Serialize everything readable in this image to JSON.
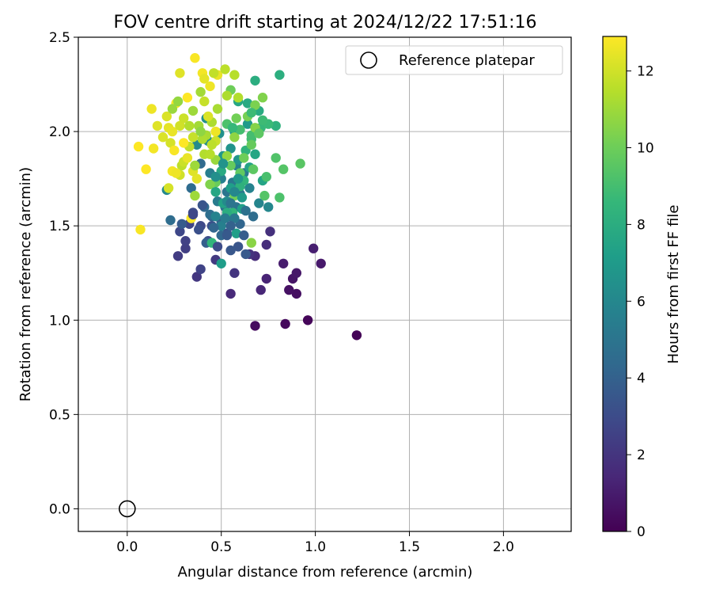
{
  "chart_data": {
    "type": "scatter",
    "title": "FOV centre drift starting at 2024/12/22 17:51:16",
    "xlabel": "Angular distance from reference (arcmin)",
    "ylabel": "Rotation from reference (arcmin)",
    "xlim": [
      -0.26,
      2.36
    ],
    "ylim": [
      -0.12,
      2.5
    ],
    "xticks": [
      0.0,
      0.5,
      1.0,
      1.5,
      2.0
    ],
    "xtick_labels": [
      "0.0",
      "0.5",
      "1.0",
      "1.5",
      "2.0"
    ],
    "yticks": [
      0.0,
      0.5,
      1.0,
      1.5,
      2.0,
      2.5
    ],
    "ytick_labels": [
      "0.0",
      "0.5",
      "1.0",
      "1.5",
      "2.0",
      "2.5"
    ],
    "grid": true,
    "legend": {
      "placement": "top-right",
      "entries": [
        "Reference platepar"
      ]
    },
    "reference_point": {
      "x": 0.0,
      "y": 0.0,
      "label": "Reference platepar"
    },
    "colorbar": {
      "label": "Hours from first FF file",
      "colormap": "viridis",
      "range": [
        0,
        12.9
      ],
      "ticks": [
        0,
        2,
        4,
        6,
        8,
        10,
        12
      ],
      "tick_labels": [
        "0",
        "2",
        "4",
        "6",
        "8",
        "10",
        "12"
      ],
      "colors": [
        "#440154",
        "#482878",
        "#3e4989",
        "#31688e",
        "#26828e",
        "#1f9e89",
        "#35b779",
        "#6ece58",
        "#b5de2b",
        "#fde725"
      ]
    },
    "series": [
      {
        "values_note": "x, y, hours",
        "points": [
          [
            1.22,
            0.92,
            0.1
          ],
          [
            0.96,
            1.0,
            0.2
          ],
          [
            0.84,
            0.98,
            0.3
          ],
          [
            0.68,
            0.97,
            0.4
          ],
          [
            0.9,
            1.14,
            0.5
          ],
          [
            0.86,
            1.16,
            0.6
          ],
          [
            0.88,
            1.22,
            0.7
          ],
          [
            0.9,
            1.25,
            0.8
          ],
          [
            1.03,
            1.3,
            0.9
          ],
          [
            0.83,
            1.3,
            1.0
          ],
          [
            0.99,
            1.38,
            1.1
          ],
          [
            0.74,
            1.22,
            1.3
          ],
          [
            0.71,
            1.16,
            1.4
          ],
          [
            0.55,
            1.14,
            1.5
          ],
          [
            0.68,
            1.34,
            1.6
          ],
          [
            0.74,
            1.4,
            1.7
          ],
          [
            0.76,
            1.47,
            1.8
          ],
          [
            0.65,
            1.35,
            1.9
          ],
          [
            0.57,
            1.25,
            2.0
          ],
          [
            0.37,
            1.23,
            2.1
          ],
          [
            0.47,
            1.32,
            2.2
          ],
          [
            0.27,
            1.34,
            2.3
          ],
          [
            0.31,
            1.38,
            2.4
          ],
          [
            0.31,
            1.42,
            2.5
          ],
          [
            0.39,
            1.27,
            2.6
          ],
          [
            0.33,
            1.51,
            2.7
          ],
          [
            0.28,
            1.47,
            2.8
          ],
          [
            0.39,
            1.5,
            2.9
          ],
          [
            0.35,
            1.57,
            3.0
          ],
          [
            0.43,
            1.42,
            3.1
          ],
          [
            0.45,
            1.5,
            3.2
          ],
          [
            0.53,
            1.46,
            3.3
          ],
          [
            0.59,
            1.39,
            3.4
          ],
          [
            0.55,
            1.37,
            3.5
          ],
          [
            0.63,
            1.35,
            3.6
          ],
          [
            0.29,
            1.51,
            3.7
          ],
          [
            0.5,
            1.52,
            3.8
          ],
          [
            0.42,
            1.41,
            3.9
          ],
          [
            0.45,
            1.55,
            4.0
          ],
          [
            0.55,
            1.55,
            4.1
          ],
          [
            0.6,
            1.51,
            4.2
          ],
          [
            0.5,
            1.45,
            4.3
          ],
          [
            0.39,
            1.83,
            4.4
          ],
          [
            0.34,
            1.7,
            4.5
          ],
          [
            0.23,
            1.53,
            4.6
          ],
          [
            0.44,
            1.56,
            4.7
          ],
          [
            0.52,
            1.6,
            4.8
          ],
          [
            0.58,
            1.6,
            4.9
          ],
          [
            0.53,
            1.68,
            5.0
          ],
          [
            0.6,
            1.67,
            5.1
          ],
          [
            0.56,
            1.73,
            5.2
          ],
          [
            0.62,
            1.78,
            5.3
          ],
          [
            0.48,
            1.63,
            5.4
          ],
          [
            0.44,
            1.78,
            5.5
          ],
          [
            0.5,
            1.75,
            5.6
          ],
          [
            0.58,
            1.82,
            5.7
          ],
          [
            0.65,
            1.7,
            5.8
          ],
          [
            0.7,
            1.62,
            5.9
          ],
          [
            0.75,
            1.6,
            6.0
          ],
          [
            0.21,
            1.69,
            6.1
          ],
          [
            0.37,
            1.93,
            6.2
          ],
          [
            0.43,
            1.95,
            6.3
          ],
          [
            0.42,
            2.07,
            6.4
          ],
          [
            0.49,
            1.99,
            6.5
          ],
          [
            0.55,
            1.91,
            6.6
          ],
          [
            0.59,
            1.85,
            6.7
          ],
          [
            0.51,
            1.87,
            6.8
          ],
          [
            0.57,
            2.0,
            6.9
          ],
          [
            0.64,
            2.04,
            7.0
          ],
          [
            0.5,
            1.3,
            7.1
          ],
          [
            0.58,
            1.46,
            7.2
          ],
          [
            0.61,
            1.59,
            7.3
          ],
          [
            0.65,
            1.81,
            7.4
          ],
          [
            0.72,
            1.74,
            7.5
          ],
          [
            0.68,
            1.88,
            7.6
          ],
          [
            0.59,
            2.16,
            7.7
          ],
          [
            0.64,
            2.15,
            7.8
          ],
          [
            0.7,
            2.11,
            7.9
          ],
          [
            0.68,
            2.27,
            8.0
          ],
          [
            0.81,
            2.3,
            8.1
          ],
          [
            0.79,
            2.03,
            8.2
          ],
          [
            0.63,
            1.9,
            8.3
          ],
          [
            0.45,
            1.41,
            8.4
          ],
          [
            0.56,
            1.57,
            8.5
          ],
          [
            0.71,
            2.02,
            8.6
          ],
          [
            0.75,
            2.04,
            8.7
          ],
          [
            0.72,
            2.06,
            8.8
          ],
          [
            0.66,
            1.96,
            8.9
          ],
          [
            0.66,
            1.98,
            9.0
          ],
          [
            0.74,
            1.76,
            9.1
          ],
          [
            0.81,
            1.65,
            9.2
          ],
          [
            0.79,
            1.86,
            9.3
          ],
          [
            0.83,
            1.8,
            9.4
          ],
          [
            0.92,
            1.83,
            9.5
          ],
          [
            0.67,
            1.8,
            9.6
          ],
          [
            0.6,
            1.78,
            9.7
          ],
          [
            0.55,
            1.82,
            9.8
          ],
          [
            0.47,
            1.73,
            9.9
          ],
          [
            0.55,
            2.22,
            10.0
          ],
          [
            0.58,
            2.07,
            10.1
          ],
          [
            0.64,
            2.08,
            10.2
          ],
          [
            0.68,
            2.14,
            10.3
          ],
          [
            0.72,
            2.18,
            10.4
          ],
          [
            0.68,
            2.02,
            10.5
          ],
          [
            0.66,
            1.41,
            10.6
          ],
          [
            0.57,
            1.97,
            10.7
          ],
          [
            0.53,
            1.87,
            10.8
          ],
          [
            0.47,
            1.85,
            10.9
          ],
          [
            0.36,
            1.66,
            11.0
          ],
          [
            0.38,
            2.03,
            11.1
          ],
          [
            0.42,
            1.98,
            11.2
          ],
          [
            0.45,
            2.05,
            11.3
          ],
          [
            0.41,
            1.88,
            11.4
          ],
          [
            0.44,
            1.88,
            11.5
          ],
          [
            0.29,
            1.82,
            11.6
          ],
          [
            0.33,
            1.92,
            11.7
          ],
          [
            0.35,
            1.97,
            11.8
          ],
          [
            0.3,
            1.84,
            11.9
          ],
          [
            0.28,
            1.77,
            12.0
          ],
          [
            0.22,
            1.7,
            12.1
          ],
          [
            0.19,
            1.97,
            12.2
          ],
          [
            0.16,
            2.03,
            12.3
          ],
          [
            0.22,
            2.02,
            12.4
          ],
          [
            0.24,
            2.0,
            12.5
          ],
          [
            0.13,
            2.12,
            12.6
          ],
          [
            0.14,
            1.91,
            12.7
          ],
          [
            0.26,
            2.15,
            12.8
          ],
          [
            0.32,
            2.18,
            12.9
          ],
          [
            0.36,
            2.39,
            12.8
          ],
          [
            0.4,
            2.31,
            12.7
          ],
          [
            0.44,
            2.24,
            12.6
          ],
          [
            0.48,
            2.3,
            12.5
          ],
          [
            0.41,
            2.28,
            12.4
          ],
          [
            0.28,
            2.31,
            12.3
          ],
          [
            0.21,
            2.08,
            12.2
          ],
          [
            0.23,
            1.94,
            12.1
          ],
          [
            0.28,
            2.03,
            12.0
          ],
          [
            0.3,
            2.07,
            11.9
          ],
          [
            0.41,
            2.16,
            11.8
          ],
          [
            0.46,
            2.31,
            11.7
          ],
          [
            0.52,
            2.33,
            11.6
          ],
          [
            0.57,
            2.3,
            11.5
          ],
          [
            0.59,
            2.18,
            11.4
          ],
          [
            0.53,
            2.19,
            11.3
          ],
          [
            0.48,
            2.12,
            11.2
          ],
          [
            0.39,
            2.21,
            11.1
          ],
          [
            0.35,
            2.11,
            11.0
          ],
          [
            0.24,
            2.12,
            10.9
          ],
          [
            0.27,
            2.16,
            10.8
          ],
          [
            0.3,
            1.94,
            12.9
          ],
          [
            0.25,
            1.9,
            12.8
          ],
          [
            0.06,
            1.92,
            12.9
          ],
          [
            0.1,
            1.8,
            12.9
          ],
          [
            0.07,
            1.48,
            12.8
          ],
          [
            0.24,
            1.79,
            12.7
          ],
          [
            0.26,
            1.78,
            12.6
          ],
          [
            0.32,
            1.86,
            12.5
          ],
          [
            0.37,
            1.75,
            12.4
          ],
          [
            0.35,
            1.79,
            12.3
          ],
          [
            0.34,
            1.54,
            12.8
          ],
          [
            0.47,
            2.0,
            12.6
          ],
          [
            0.43,
            2.08,
            12.2
          ],
          [
            0.47,
            1.95,
            11.9
          ],
          [
            0.45,
            1.93,
            11.6
          ],
          [
            0.4,
            1.96,
            11.3
          ],
          [
            0.36,
            1.82,
            11.0
          ],
          [
            0.39,
            2.0,
            10.7
          ],
          [
            0.33,
            2.03,
            11.4
          ],
          [
            0.44,
            1.72,
            10.4
          ],
          [
            0.57,
            1.66,
            10.1
          ],
          [
            0.62,
            1.86,
            10.0
          ],
          [
            0.66,
            1.93,
            9.8
          ],
          [
            0.7,
            1.99,
            9.6
          ],
          [
            0.73,
            1.66,
            9.4
          ],
          [
            0.53,
            2.04,
            9.2
          ],
          [
            0.6,
            2.01,
            9.0
          ],
          [
            0.66,
            2.1,
            8.8
          ],
          [
            0.56,
            2.02,
            8.6
          ],
          [
            0.62,
            1.74,
            8.4
          ],
          [
            0.6,
            1.71,
            8.2
          ],
          [
            0.53,
            1.57,
            8.0
          ],
          [
            0.5,
            1.79,
            7.8
          ],
          [
            0.47,
            1.68,
            7.6
          ],
          [
            0.51,
            1.62,
            7.4
          ],
          [
            0.55,
            1.7,
            7.2
          ],
          [
            0.61,
            1.65,
            7.0
          ],
          [
            0.59,
            1.75,
            6.8
          ],
          [
            0.51,
            1.83,
            6.6
          ],
          [
            0.47,
            1.76,
            6.4
          ],
          [
            0.53,
            1.63,
            6.2
          ],
          [
            0.57,
            1.68,
            6.0
          ],
          [
            0.47,
            1.55,
            5.8
          ],
          [
            0.5,
            1.5,
            5.6
          ],
          [
            0.52,
            1.54,
            5.4
          ],
          [
            0.57,
            1.54,
            5.2
          ],
          [
            0.55,
            1.62,
            5.0
          ],
          [
            0.63,
            1.58,
            4.8
          ],
          [
            0.67,
            1.55,
            4.6
          ],
          [
            0.41,
            1.6,
            4.4
          ],
          [
            0.46,
            1.49,
            4.2
          ],
          [
            0.55,
            1.5,
            4.0
          ],
          [
            0.62,
            1.45,
            3.8
          ],
          [
            0.53,
            1.45,
            3.6
          ],
          [
            0.4,
            1.61,
            3.4
          ],
          [
            0.38,
            1.48,
            3.2
          ],
          [
            0.48,
            1.39,
            3.0
          ],
          [
            0.35,
            1.56,
            2.8
          ]
        ]
      }
    ]
  }
}
